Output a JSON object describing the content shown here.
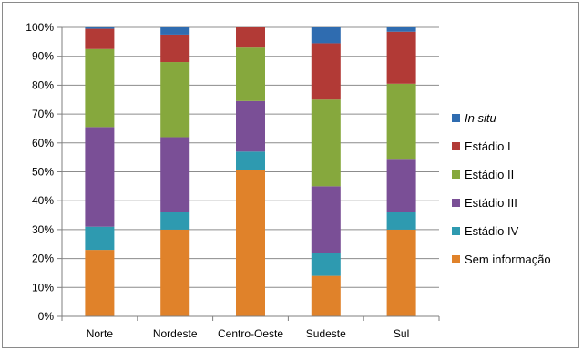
{
  "chart_data": {
    "type": "bar",
    "stacked": true,
    "percent": true,
    "categories": [
      "Norte",
      "Nordeste",
      "Centro-Oeste",
      "Sudeste",
      "Sul"
    ],
    "y_ticks": [
      "0%",
      "10%",
      "20%",
      "30%",
      "40%",
      "50%",
      "60%",
      "70%",
      "80%",
      "90%",
      "100%"
    ],
    "ylim": [
      0,
      100
    ],
    "grid": true,
    "legend_position": "right",
    "series": [
      {
        "name": "Sem informação",
        "color": "#E0822A",
        "values": [
          23,
          30,
          50.5,
          14,
          30
        ]
      },
      {
        "name": "Estádio IV",
        "color": "#2E9AB0",
        "values": [
          8,
          6,
          6.5,
          8,
          6
        ]
      },
      {
        "name": "Estádio III",
        "color": "#7A4F96",
        "values": [
          34.5,
          26,
          17.5,
          23,
          18.5
        ]
      },
      {
        "name": "Estádio II",
        "color": "#86A83D",
        "values": [
          27,
          26,
          18.5,
          30,
          26
        ]
      },
      {
        "name": "Estádio I",
        "color": "#B23A36",
        "values": [
          7,
          9.5,
          7,
          19.5,
          18
        ]
      },
      {
        "name": "In situ",
        "color": "#2F6CB0",
        "values": [
          0.5,
          2.5,
          0,
          5.5,
          1.5
        ]
      }
    ]
  }
}
